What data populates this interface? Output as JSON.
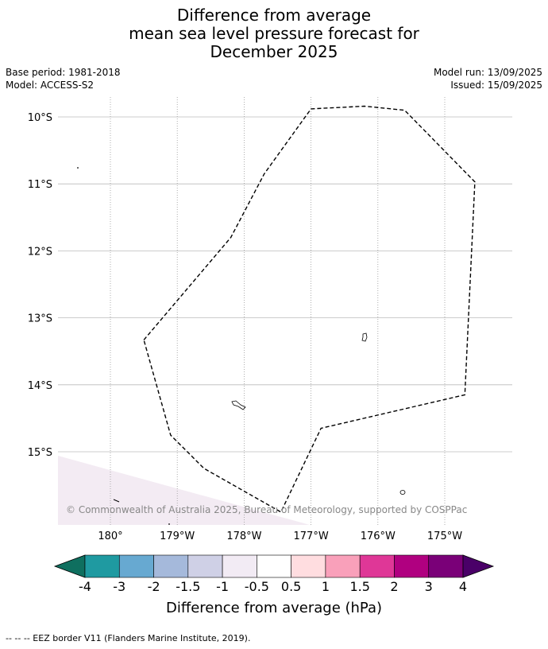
{
  "title": {
    "line1": "Difference from average",
    "line2": "mean sea level pressure forecast for",
    "line3": "December 2025"
  },
  "meta": {
    "base_period": "Base period: 1981-2018",
    "model": "Model: ACCESS-S2",
    "model_run": "Model run: 13/09/2025",
    "issued": "Issued: 15/09/2025"
  },
  "map": {
    "lon_ticks": [
      {
        "value": 180,
        "label": "180°"
      },
      {
        "value": -179,
        "label": "179°W"
      },
      {
        "value": -178,
        "label": "178°W"
      },
      {
        "value": -177,
        "label": "177°W"
      },
      {
        "value": -176,
        "label": "176°W"
      },
      {
        "value": -175,
        "label": "175°W"
      }
    ],
    "lat_ticks": [
      {
        "value": -10,
        "label": "10°S"
      },
      {
        "value": -11,
        "label": "11°S"
      },
      {
        "value": -12,
        "label": "12°S"
      },
      {
        "value": -13,
        "label": "13°S"
      },
      {
        "value": -14,
        "label": "14°S"
      },
      {
        "value": -15,
        "label": "15°S"
      }
    ],
    "eez_border": [
      [
        -179.5,
        -13.33
      ],
      [
        -178.2,
        -11.8
      ],
      [
        -177.7,
        -10.85
      ],
      [
        -177.0,
        -9.88
      ],
      [
        -176.2,
        -9.84
      ],
      [
        -175.6,
        -9.9
      ],
      [
        -174.55,
        -10.97
      ],
      [
        -174.7,
        -14.15
      ],
      [
        -176.85,
        -14.65
      ],
      [
        -177.45,
        -15.9
      ],
      [
        -178.6,
        -15.25
      ],
      [
        -179.1,
        -14.75
      ],
      [
        -179.5,
        -13.33
      ]
    ],
    "anomaly_region_color": "#f3ebf3",
    "copyright": "© Commonwealth of Australia 2025, Bureau of Meteorology, supported by COSPPac"
  },
  "colorbar": {
    "title": "Difference from average (hPa)",
    "colors": [
      "#0f6f5f",
      "#1f9aa1",
      "#67a9d1",
      "#a5b9db",
      "#cfd0e6",
      "#f2ebf4",
      "#ffffff",
      "#ffdde0",
      "#f9a0ba",
      "#df3797",
      "#b00080",
      "#7a0078",
      "#4a0068"
    ],
    "tick_labels": [
      "-4",
      "-3",
      "-2",
      "-1.5",
      "-1",
      "-0.5",
      "0.5",
      "1",
      "1.5",
      "2",
      "3",
      "4"
    ]
  },
  "footer": {
    "legend_text": "--  --  -- EEZ border V11 (Flanders Marine Institute, 2019)."
  }
}
